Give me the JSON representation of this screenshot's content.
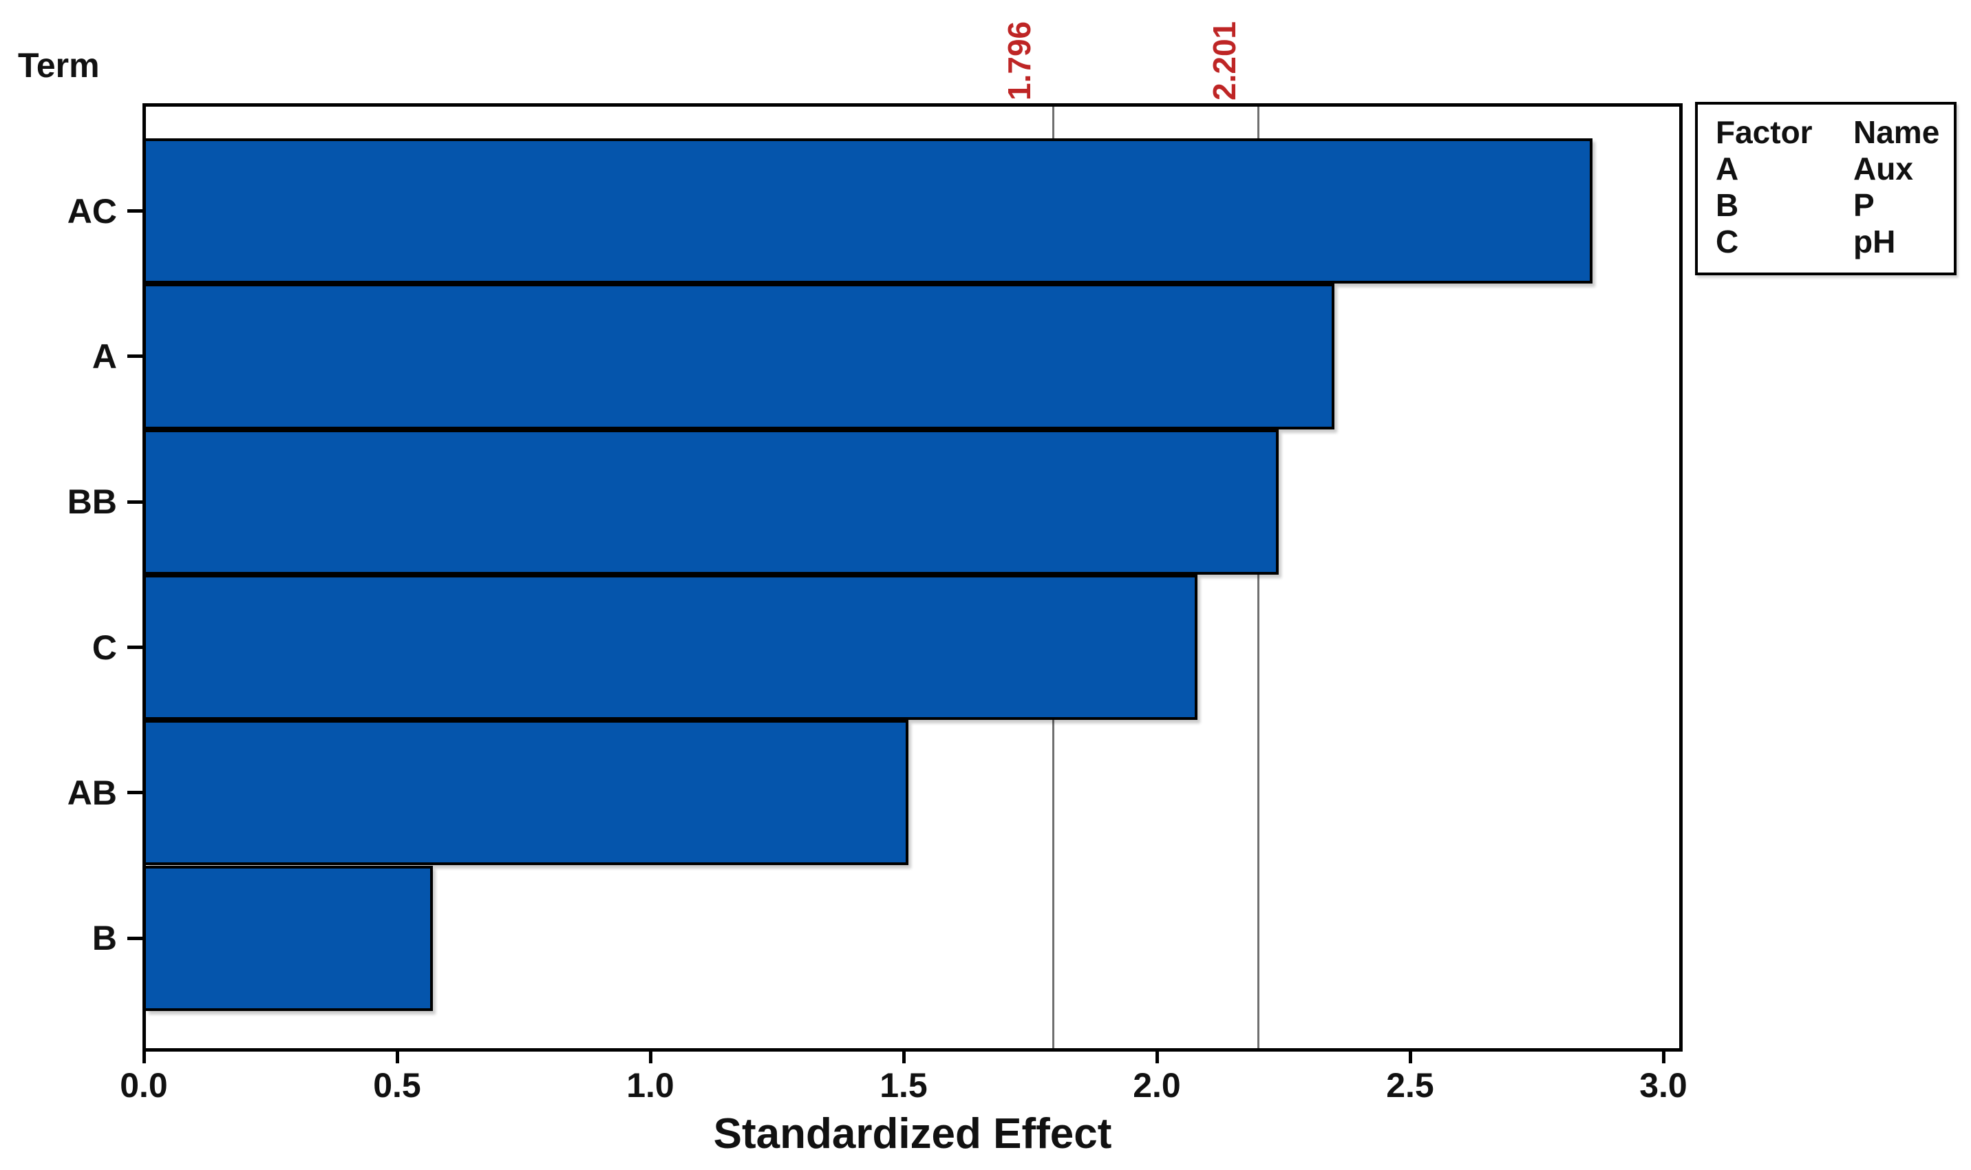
{
  "chart_data": {
    "type": "bar",
    "orientation": "horizontal",
    "title": "",
    "ylabel": "Term",
    "xlabel": "Standardized Effect",
    "categories": [
      "AC",
      "A",
      "BB",
      "C",
      "AB",
      "B"
    ],
    "values": [
      2.86,
      2.35,
      2.24,
      2.08,
      1.51,
      0.57
    ],
    "xlim": [
      0,
      3.04
    ],
    "xticks": [
      "0.0",
      "0.5",
      "1.0",
      "1.5",
      "2.0",
      "2.5",
      "3.0"
    ],
    "grid": false,
    "legend_position": "top-right",
    "bar_color": "#0555AC",
    "bar_border_color": "#000000",
    "reference_lines": [
      {
        "value": 1.796,
        "label": "1.796"
      },
      {
        "value": 2.201,
        "label": "2.201"
      }
    ],
    "reference_line_color": "#6f6f6f",
    "reference_label_color": "#BE2525"
  },
  "legend": {
    "headers": [
      "Factor",
      "Name"
    ],
    "rows": [
      [
        "A",
        "Aux"
      ],
      [
        "B",
        "P"
      ],
      [
        "C",
        "pH"
      ]
    ]
  }
}
